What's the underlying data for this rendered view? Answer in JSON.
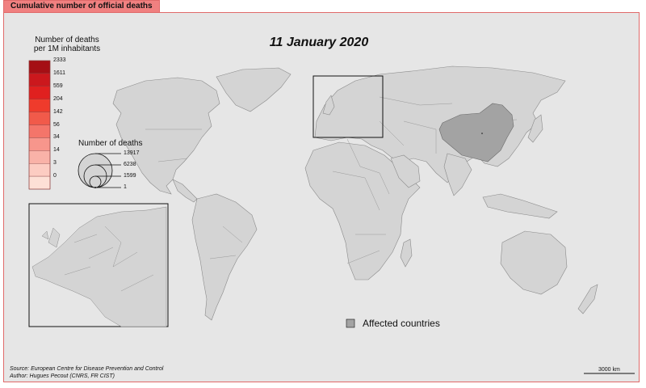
{
  "header": {
    "tab_title": "Cumulative number of official deaths"
  },
  "map": {
    "date_title": "11 January 2020",
    "choropleth_legend": {
      "title": "Number of deaths\nper 1M inhabitants",
      "breaks": [
        "2333",
        "1611",
        "559",
        "204",
        "142",
        "56",
        "34",
        "14",
        "3",
        "0"
      ],
      "colors": [
        "#a50f15",
        "#cb181d",
        "#e0201f",
        "#ef3b2c",
        "#f15a4a",
        "#f4756a",
        "#f7968c",
        "#f9b2a8",
        "#fcccc2",
        "#fde0d6"
      ]
    },
    "proportional_legend": {
      "title": "Number of deaths",
      "values": [
        "13917",
        "6238",
        "1599",
        "1"
      ]
    },
    "affected_legend": {
      "label": "Affected countries",
      "color": "#a3a3a3"
    },
    "land_color": "#d4d4d4",
    "ocean_color": "#e6e6e6",
    "highlighted_country": "China",
    "source": "Source: European Centre for Disease Prevention and Control",
    "author": "Author: Hugues Pecout (CNRS, FR CIST)",
    "scale_bar_label": "3000 km"
  }
}
